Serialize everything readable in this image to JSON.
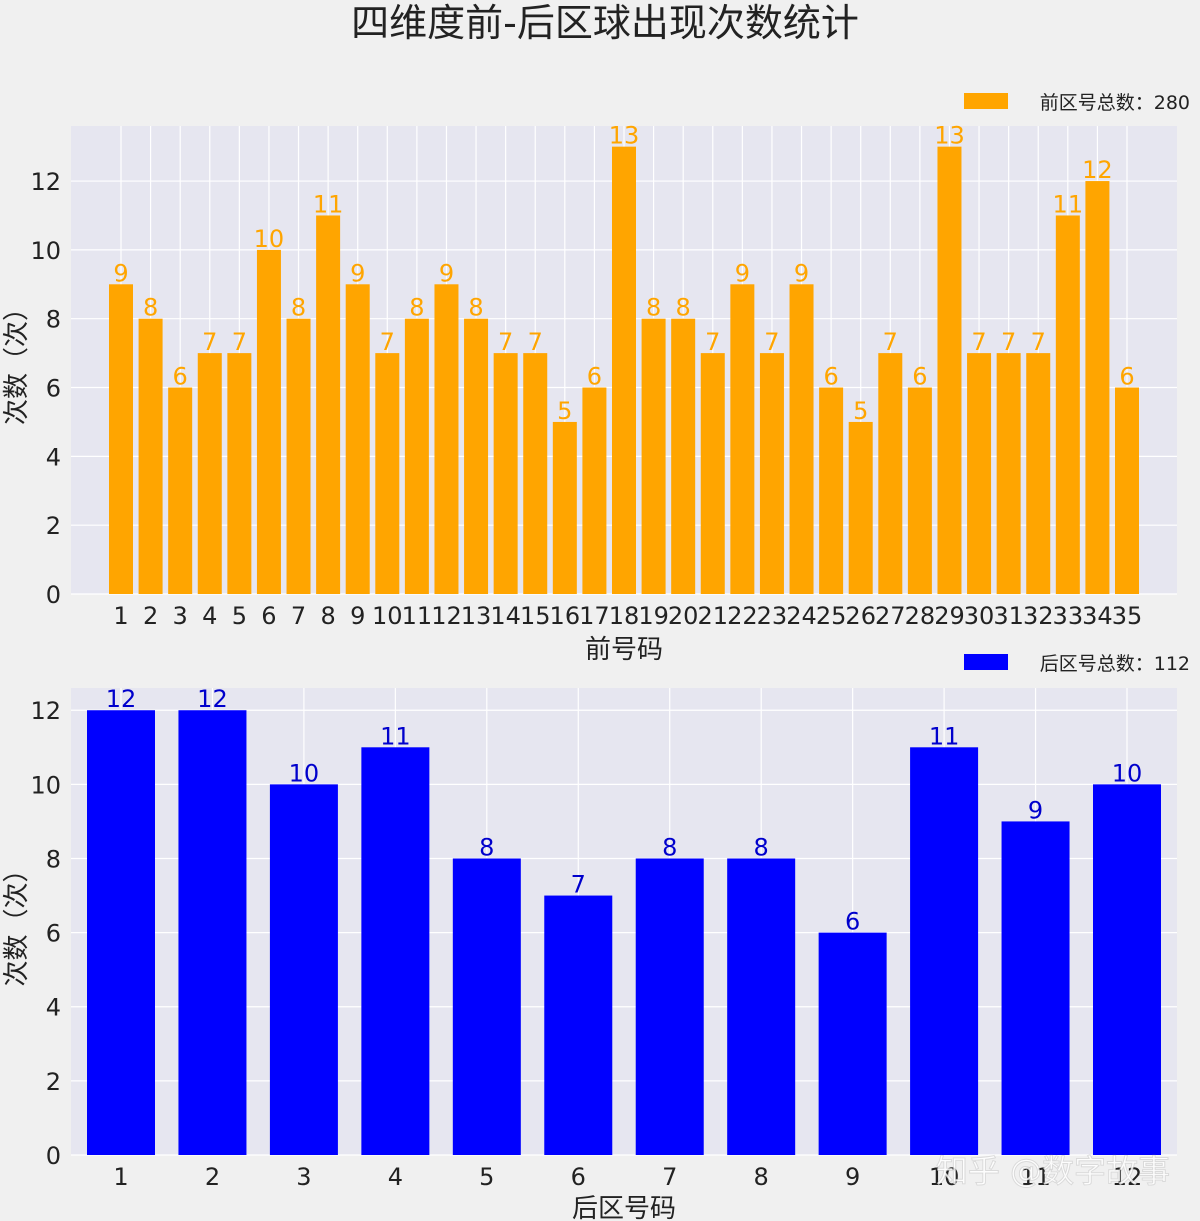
{
  "title": "四维度前-后区球出现次数统计",
  "watermark": "知乎 @数字故事",
  "chart_data": [
    {
      "type": "bar",
      "color": "#ffa500",
      "label_color": "#ffa500",
      "xlabel": "前号码",
      "ylabel": "次数（次）",
      "legend": "前区号总数：280",
      "legend_position": "top-right",
      "grid": true,
      "ylim": [
        0,
        13.6
      ],
      "yticks": [
        0,
        2,
        4,
        6,
        8,
        10,
        12
      ],
      "categories": [
        "1",
        "2",
        "3",
        "4",
        "5",
        "6",
        "7",
        "8",
        "9",
        "10",
        "11",
        "12",
        "13",
        "14",
        "15",
        "16",
        "17",
        "18",
        "19",
        "20",
        "21",
        "22",
        "23",
        "24",
        "25",
        "26",
        "27",
        "28",
        "29",
        "30",
        "31",
        "32",
        "33",
        "34",
        "35"
      ],
      "values": [
        9,
        8,
        6,
        7,
        7,
        10,
        8,
        11,
        9,
        7,
        8,
        9,
        8,
        7,
        7,
        5,
        6,
        13,
        8,
        8,
        7,
        9,
        7,
        9,
        6,
        5,
        7,
        6,
        13,
        7,
        7,
        7,
        11,
        12,
        6
      ]
    },
    {
      "type": "bar",
      "color": "#0000ff",
      "label_color": "#0000cc",
      "xlabel": "后区号码",
      "ylabel": "次数（次）",
      "legend": "后区号总数：112",
      "legend_position": "top-right",
      "grid": true,
      "ylim": [
        0,
        12.6
      ],
      "yticks": [
        0,
        2,
        4,
        6,
        8,
        10,
        12
      ],
      "categories": [
        "1",
        "2",
        "3",
        "4",
        "5",
        "6",
        "7",
        "8",
        "9",
        "10",
        "11",
        "12"
      ],
      "values": [
        12,
        12,
        10,
        11,
        8,
        7,
        8,
        8,
        6,
        11,
        9,
        10
      ]
    }
  ]
}
